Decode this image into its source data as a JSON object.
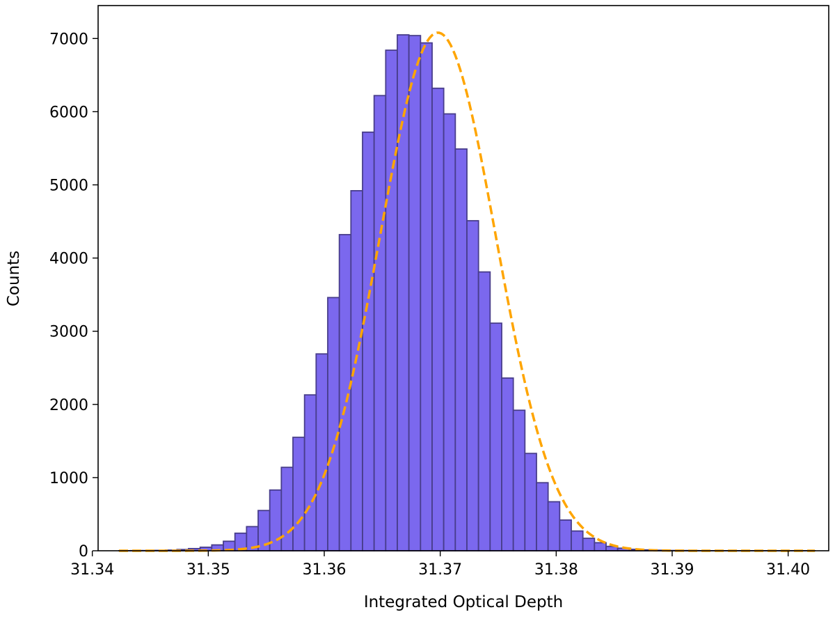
{
  "chart_data": {
    "type": "bar",
    "subtype": "histogram",
    "title": "",
    "xlabel": "Integrated Optical Depth",
    "ylabel": "Counts",
    "xlim": [
      31.3405,
      31.4035
    ],
    "ylim": [
      0,
      7450
    ],
    "xticks": [
      31.34,
      31.35,
      31.36,
      31.37,
      31.38,
      31.39,
      31.4
    ],
    "xtick_labels": [
      "31.34",
      "31.35",
      "31.36",
      "31.37",
      "31.38",
      "31.39",
      "31.40"
    ],
    "yticks": [
      0,
      1000,
      2000,
      3000,
      4000,
      5000,
      6000,
      7000
    ],
    "ytick_labels": [
      "0",
      "1000",
      "2000",
      "3000",
      "4000",
      "5000",
      "6000",
      "7000"
    ],
    "grid": false,
    "bin_edges": [
      31.3423,
      31.3433,
      31.3443,
      31.3453,
      31.3463,
      31.3473,
      31.3483,
      31.3493,
      31.3503,
      31.3513,
      31.3523,
      31.3533,
      31.3543,
      31.3553,
      31.3563,
      31.3573,
      31.3583,
      31.3593,
      31.3603,
      31.3613,
      31.3623,
      31.3633,
      31.3643,
      31.3653,
      31.3663,
      31.3673,
      31.3683,
      31.3693,
      31.3703,
      31.3713,
      31.3723,
      31.3733,
      31.3743,
      31.3753,
      31.3763,
      31.3773,
      31.3783,
      31.3793,
      31.3803,
      31.3813,
      31.3823,
      31.3833,
      31.3843,
      31.3853,
      31.3863,
      31.3873,
      31.3883,
      31.3893,
      31.3903,
      31.3913,
      31.3923,
      31.3933,
      31.3943,
      31.3953,
      31.3963,
      31.3973,
      31.3983,
      31.3993,
      31.4003,
      31.4013,
      31.4023
    ],
    "counts": [
      1,
      2,
      3,
      5,
      9,
      17,
      30,
      48,
      80,
      130,
      240,
      330,
      550,
      830,
      1140,
      1550,
      2130,
      2690,
      3460,
      4320,
      4920,
      5720,
      6220,
      6840,
      7050,
      7040,
      6940,
      6320,
      5970,
      5490,
      4510,
      3810,
      3110,
      2360,
      1920,
      1330,
      930,
      670,
      420,
      270,
      170,
      110,
      60,
      35,
      20,
      12,
      7,
      4,
      3,
      2,
      1,
      1,
      1,
      1,
      1,
      1,
      1,
      1,
      1,
      1
    ],
    "series": [
      {
        "type": "line",
        "style": "dashed",
        "mean": 31.3698,
        "sigma": 0.005,
        "amplitude": 7080
      }
    ],
    "colors": {
      "bar_fill": "#7b68ee",
      "bar_edge": "#483d8b",
      "fit_line": "#ffa500"
    }
  }
}
